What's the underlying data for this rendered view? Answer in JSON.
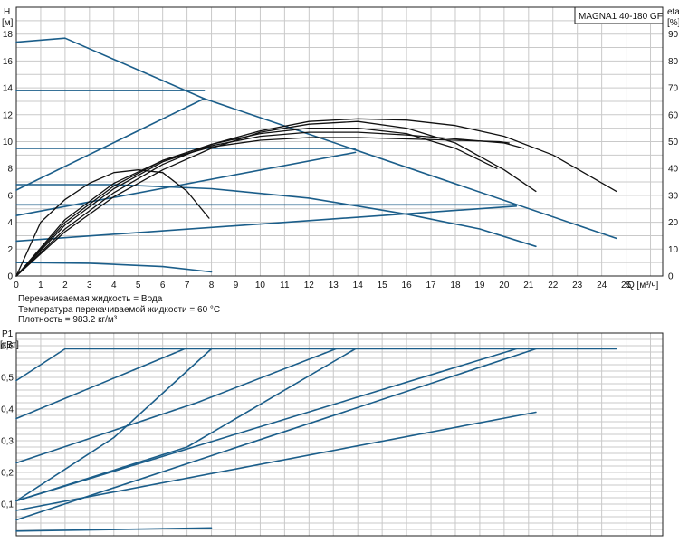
{
  "model_label": "MAGNA1 40-180 GF",
  "info": {
    "liquid": "Перекачиваемая жидкость = Вода",
    "temperature": "Температура перекачиваемой жидкости = 60 °C",
    "density": "Плотность = 983.2 кг/м³"
  },
  "colors": {
    "pump_curves": "#1b5e8a",
    "efficiency_curves": "#111111",
    "grid": "#c9c9c9"
  },
  "chart_data": [
    {
      "type": "line",
      "name": "head",
      "ylabel_top": "H",
      "ylabel_bottom": "[м]",
      "y2label_top": "eta",
      "y2label_bottom": "[%]",
      "xlabel": "Q [м³/ч]",
      "xlim": [
        0,
        26.5
      ],
      "ylim": [
        0,
        20
      ],
      "y2lim": [
        0,
        100
      ],
      "x_ticks": [
        0,
        1,
        2,
        3,
        4,
        5,
        6,
        7,
        8,
        9,
        10,
        11,
        12,
        13,
        14,
        15,
        16,
        17,
        18,
        19,
        20,
        21,
        22,
        23,
        24,
        25
      ],
      "y_ticks": [
        0,
        2,
        4,
        6,
        8,
        10,
        12,
        14,
        16,
        18
      ],
      "y2_ticks": [
        0,
        10,
        20,
        30,
        40,
        50,
        60,
        70,
        80,
        90
      ],
      "grid": true,
      "series": [
        {
          "kind": "pump",
          "x": [
            0,
            2,
            7.7,
            24.6
          ],
          "y": [
            17.4,
            17.7,
            13.2,
            2.8
          ]
        },
        {
          "kind": "pump",
          "x": [
            0,
            7.7
          ],
          "y": [
            13.8,
            13.8
          ]
        },
        {
          "kind": "pump",
          "x": [
            0,
            7.7
          ],
          "y": [
            6.4,
            13.2
          ]
        },
        {
          "kind": "pump",
          "x": [
            0,
            13.9
          ],
          "y": [
            9.5,
            9.5
          ]
        },
        {
          "kind": "pump",
          "x": [
            0,
            13.9
          ],
          "y": [
            4.5,
            9.2
          ]
        },
        {
          "kind": "pump",
          "x": [
            0,
            4,
            8,
            12,
            16,
            19,
            21.3
          ],
          "y": [
            6.8,
            6.8,
            6.5,
            5.8,
            4.6,
            3.5,
            2.2
          ]
        },
        {
          "kind": "pump",
          "x": [
            0,
            20.5
          ],
          "y": [
            5.3,
            5.3
          ]
        },
        {
          "kind": "pump",
          "x": [
            0,
            20.5
          ],
          "y": [
            2.6,
            5.2
          ]
        },
        {
          "kind": "pump",
          "x": [
            0,
            3,
            6,
            8
          ],
          "y": [
            1.0,
            0.95,
            0.7,
            0.3
          ]
        },
        {
          "kind": "eta",
          "x": [
            0,
            1,
            2,
            3,
            4,
            5,
            6,
            7,
            7.9
          ],
          "y": [
            0,
            4,
            5.7,
            6.9,
            7.7,
            7.9,
            7.7,
            6.3,
            4.3
          ]
        },
        {
          "kind": "eta",
          "x": [
            0,
            2,
            4,
            6,
            8,
            10,
            12,
            14,
            16,
            18,
            19.8,
            20.2
          ],
          "y": [
            0,
            4.2,
            6.9,
            8.6,
            9.6,
            10.1,
            10.3,
            10.3,
            10.2,
            10.1,
            10,
            9.9
          ]
        },
        {
          "kind": "eta",
          "x": [
            0,
            2,
            4,
            6,
            8,
            10,
            12,
            14,
            16,
            18,
            20,
            20.8
          ],
          "y": [
            0,
            3.8,
            6.5,
            8.5,
            9.7,
            10.4,
            10.7,
            10.7,
            10.5,
            10.2,
            9.9,
            9.5
          ]
        },
        {
          "kind": "eta",
          "x": [
            0,
            2,
            4,
            6,
            8,
            10,
            12,
            14,
            16,
            18,
            19.7
          ],
          "y": [
            0,
            4.0,
            6.7,
            8.6,
            9.8,
            10.6,
            11.0,
            11.0,
            10.6,
            9.5,
            8.0
          ]
        },
        {
          "kind": "eta",
          "x": [
            0,
            2,
            4,
            6,
            8,
            10,
            12,
            14,
            16,
            18,
            20,
            21.3
          ],
          "y": [
            0,
            3.3,
            5.9,
            7.9,
            9.5,
            10.7,
            11.3,
            11.5,
            11.0,
            9.9,
            7.9,
            6.3
          ]
        },
        {
          "kind": "eta",
          "x": [
            0,
            2,
            4,
            6,
            8,
            10,
            12,
            14,
            16,
            18,
            20,
            22,
            24.6
          ],
          "y": [
            0,
            3.5,
            6.2,
            8.3,
            9.8,
            10.8,
            11.5,
            11.7,
            11.6,
            11.2,
            10.4,
            9.0,
            6.3
          ]
        }
      ]
    },
    {
      "type": "line",
      "name": "power",
      "ylabel_top": "P1",
      "ylabel_bottom": "[кВт]",
      "xlim": [
        0,
        26.5
      ],
      "ylim": [
        0,
        0.64
      ],
      "y_ticks": [
        0.1,
        0.2,
        0.3,
        0.4,
        0.5,
        0.6
      ],
      "y_tick_labels": [
        "0,1",
        "0,2",
        "0,3",
        "0,4",
        "0,5",
        "0,6"
      ],
      "grid": true,
      "series": [
        {
          "x": [
            0,
            2,
            24.6
          ],
          "y": [
            0.49,
            0.59,
            0.59
          ]
        },
        {
          "x": [
            0,
            6.9
          ],
          "y": [
            0.37,
            0.59
          ]
        },
        {
          "x": [
            0,
            4,
            8
          ],
          "y": [
            0.11,
            0.31,
            0.59
          ]
        },
        {
          "x": [
            0,
            7.4,
            13.1
          ],
          "y": [
            0.23,
            0.42,
            0.59
          ]
        },
        {
          "x": [
            0,
            7,
            13.9
          ],
          "y": [
            0.11,
            0.28,
            0.59
          ]
        },
        {
          "x": [
            0,
            20.5
          ],
          "y": [
            0.11,
            0.59
          ]
        },
        {
          "x": [
            0,
            21.3
          ],
          "y": [
            0.05,
            0.59
          ]
        },
        {
          "x": [
            0,
            21.3
          ],
          "y": [
            0.08,
            0.39
          ]
        },
        {
          "x": [
            0,
            8
          ],
          "y": [
            0.015,
            0.025
          ]
        }
      ]
    }
  ]
}
